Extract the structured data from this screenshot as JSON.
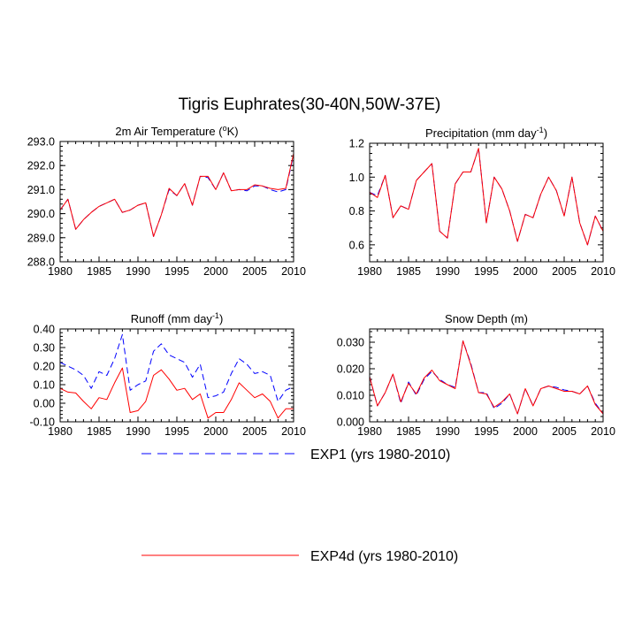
{
  "figure": {
    "title": "Tigris Euphrates(30-40N,50W-37E)"
  },
  "legend": [
    {
      "name": "EXP1 (yrs 1980-2010)",
      "color": "#0000ff",
      "style": "dashed"
    },
    {
      "name": "EXP4d (yrs 1980-2010)",
      "color": "#ff0000",
      "style": "solid"
    }
  ],
  "chart_data": [
    {
      "type": "line",
      "title": "2m Air Temperature (°K)",
      "title_main": "2m Air Temperature (",
      "title_sup": "o",
      "title_tail": "K)",
      "xlim": [
        1980,
        2010
      ],
      "ylim": [
        288.0,
        293.0
      ],
      "xticks": [
        1980,
        1985,
        1990,
        1995,
        2000,
        2005,
        2010
      ],
      "yticks": [
        "288.0",
        "289.0",
        "290.0",
        "291.0",
        "292.0",
        "293.0"
      ],
      "x": [
        1980,
        1981,
        1982,
        1983,
        1984,
        1985,
        1986,
        1987,
        1988,
        1989,
        1990,
        1991,
        1992,
        1993,
        1994,
        1995,
        1996,
        1997,
        1998,
        1999,
        2000,
        2001,
        2002,
        2003,
        2004,
        2005,
        2006,
        2007,
        2008,
        2009,
        2010
      ],
      "series": [
        {
          "name": "EXP1 (yrs 1980-2010)",
          "values": [
            290.15,
            290.6,
            289.35,
            289.75,
            290.05,
            290.3,
            290.45,
            290.6,
            290.05,
            290.15,
            290.35,
            290.45,
            289.05,
            289.95,
            291.0,
            290.75,
            291.25,
            290.35,
            291.55,
            291.5,
            291.0,
            291.7,
            290.95,
            291.0,
            290.95,
            291.15,
            291.15,
            291.0,
            290.9,
            291.0,
            292.45
          ]
        },
        {
          "name": "EXP4d (yrs 1980-2010)",
          "values": [
            290.15,
            290.6,
            289.35,
            289.75,
            290.05,
            290.3,
            290.45,
            290.6,
            290.05,
            290.15,
            290.35,
            290.45,
            289.05,
            289.95,
            291.05,
            290.75,
            291.25,
            290.35,
            291.55,
            291.55,
            291.0,
            291.7,
            290.95,
            291.0,
            291.0,
            291.2,
            291.15,
            291.05,
            291.0,
            291.05,
            292.5
          ]
        }
      ]
    },
    {
      "type": "line",
      "title": "Precipitation (mm day-1)",
      "title_main": "Precipitation (mm day",
      "title_sup": "-1",
      "title_tail": ")",
      "xlim": [
        1980,
        2010
      ],
      "ylim": [
        0.5,
        1.2
      ],
      "xticks": [
        1980,
        1985,
        1990,
        1995,
        2000,
        2005,
        2010
      ],
      "yticks": [
        "0.6",
        "0.8",
        "1.0",
        "1.2"
      ],
      "x": [
        1980,
        1981,
        1982,
        1983,
        1984,
        1985,
        1986,
        1987,
        1988,
        1989,
        1990,
        1991,
        1992,
        1993,
        1994,
        1995,
        1996,
        1997,
        1998,
        1999,
        2000,
        2001,
        2002,
        2003,
        2004,
        2005,
        2006,
        2007,
        2008,
        2009,
        2010
      ],
      "series": [
        {
          "name": "EXP1 (yrs 1980-2010)",
          "values": [
            0.91,
            0.89,
            1.01,
            0.76,
            0.83,
            0.81,
            0.98,
            1.03,
            1.08,
            0.68,
            0.64,
            0.96,
            1.03,
            1.03,
            1.17,
            0.73,
            1.0,
            0.93,
            0.8,
            0.62,
            0.78,
            0.76,
            0.9,
            1.0,
            0.92,
            0.77,
            1.0,
            0.73,
            0.6,
            0.77,
            0.68
          ]
        },
        {
          "name": "EXP4d (yrs 1980-2010)",
          "values": [
            0.91,
            0.88,
            1.01,
            0.76,
            0.83,
            0.81,
            0.98,
            1.03,
            1.08,
            0.68,
            0.64,
            0.96,
            1.03,
            1.03,
            1.17,
            0.73,
            1.0,
            0.93,
            0.8,
            0.62,
            0.78,
            0.76,
            0.9,
            1.0,
            0.92,
            0.77,
            1.0,
            0.73,
            0.6,
            0.77,
            0.68
          ]
        }
      ]
    },
    {
      "type": "line",
      "title": "Runoff (mm day-1)",
      "title_main": "Runoff (mm day",
      "title_sup": "-1",
      "title_tail": ")",
      "xlim": [
        1980,
        2010
      ],
      "ylim": [
        -0.1,
        0.4
      ],
      "xticks": [
        1980,
        1985,
        1990,
        1995,
        2000,
        2005,
        2010
      ],
      "yticks": [
        "-0.10",
        "0.00",
        "0.10",
        "0.20",
        "0.30",
        "0.40"
      ],
      "x": [
        1980,
        1981,
        1982,
        1983,
        1984,
        1985,
        1986,
        1987,
        1988,
        1989,
        1990,
        1991,
        1992,
        1993,
        1994,
        1995,
        1996,
        1997,
        1998,
        1999,
        2000,
        2001,
        2002,
        2003,
        2004,
        2005,
        2006,
        2007,
        2008,
        2009,
        2010
      ],
      "series": [
        {
          "name": "EXP1 (yrs 1980-2010)",
          "values": [
            0.22,
            0.2,
            0.18,
            0.15,
            0.08,
            0.17,
            0.15,
            0.24,
            0.37,
            0.07,
            0.1,
            0.12,
            0.28,
            0.32,
            0.26,
            0.24,
            0.22,
            0.14,
            0.21,
            0.03,
            0.04,
            0.06,
            0.16,
            0.24,
            0.21,
            0.16,
            0.17,
            0.15,
            0.01,
            0.07,
            0.09
          ]
        },
        {
          "name": "EXP4d (yrs 1980-2010)",
          "values": [
            0.08,
            0.06,
            0.055,
            0.01,
            -0.03,
            0.03,
            0.02,
            0.11,
            0.19,
            -0.05,
            -0.04,
            0.01,
            0.15,
            0.18,
            0.13,
            0.07,
            0.08,
            0.02,
            0.05,
            -0.08,
            -0.05,
            -0.05,
            0.02,
            0.11,
            0.07,
            0.03,
            0.05,
            0.01,
            -0.08,
            -0.03,
            -0.03
          ]
        }
      ]
    },
    {
      "type": "line",
      "title": "Snow Depth (m)",
      "title_main": "Snow Depth (m)",
      "title_sup": "",
      "title_tail": "",
      "xlim": [
        1980,
        2010
      ],
      "ylim": [
        0.0,
        0.035
      ],
      "xticks": [
        1980,
        1985,
        1990,
        1995,
        2000,
        2005,
        2010
      ],
      "yticks": [
        "0.000",
        "0.010",
        "0.020",
        "0.030"
      ],
      "x": [
        1980,
        1981,
        1982,
        1983,
        1984,
        1985,
        1986,
        1987,
        1988,
        1989,
        1990,
        1991,
        1992,
        1993,
        1994,
        1995,
        1996,
        1997,
        1998,
        1999,
        2000,
        2001,
        2002,
        2003,
        2004,
        2005,
        2006,
        2007,
        2008,
        2009,
        2010
      ],
      "series": [
        {
          "name": "EXP1 (yrs 1980-2010)",
          "values": [
            0.017,
            0.006,
            0.011,
            0.018,
            0.007,
            0.015,
            0.01,
            0.016,
            0.019,
            0.016,
            0.014,
            0.013,
            0.0305,
            0.022,
            0.011,
            0.011,
            0.005,
            0.007,
            0.0105,
            0.003,
            0.0125,
            0.006,
            0.0125,
            0.0135,
            0.013,
            0.012,
            0.0115,
            0.0105,
            0.0135,
            0.007,
            0.003
          ]
        },
        {
          "name": "EXP4d (yrs 1980-2010)",
          "values": [
            0.017,
            0.006,
            0.011,
            0.018,
            0.0075,
            0.0145,
            0.0105,
            0.0165,
            0.0195,
            0.0155,
            0.014,
            0.0125,
            0.0305,
            0.0215,
            0.011,
            0.0105,
            0.0055,
            0.0075,
            0.0105,
            0.003,
            0.0125,
            0.006,
            0.0125,
            0.0135,
            0.0125,
            0.0115,
            0.0115,
            0.0105,
            0.0135,
            0.0065,
            0.003
          ]
        }
      ]
    }
  ]
}
